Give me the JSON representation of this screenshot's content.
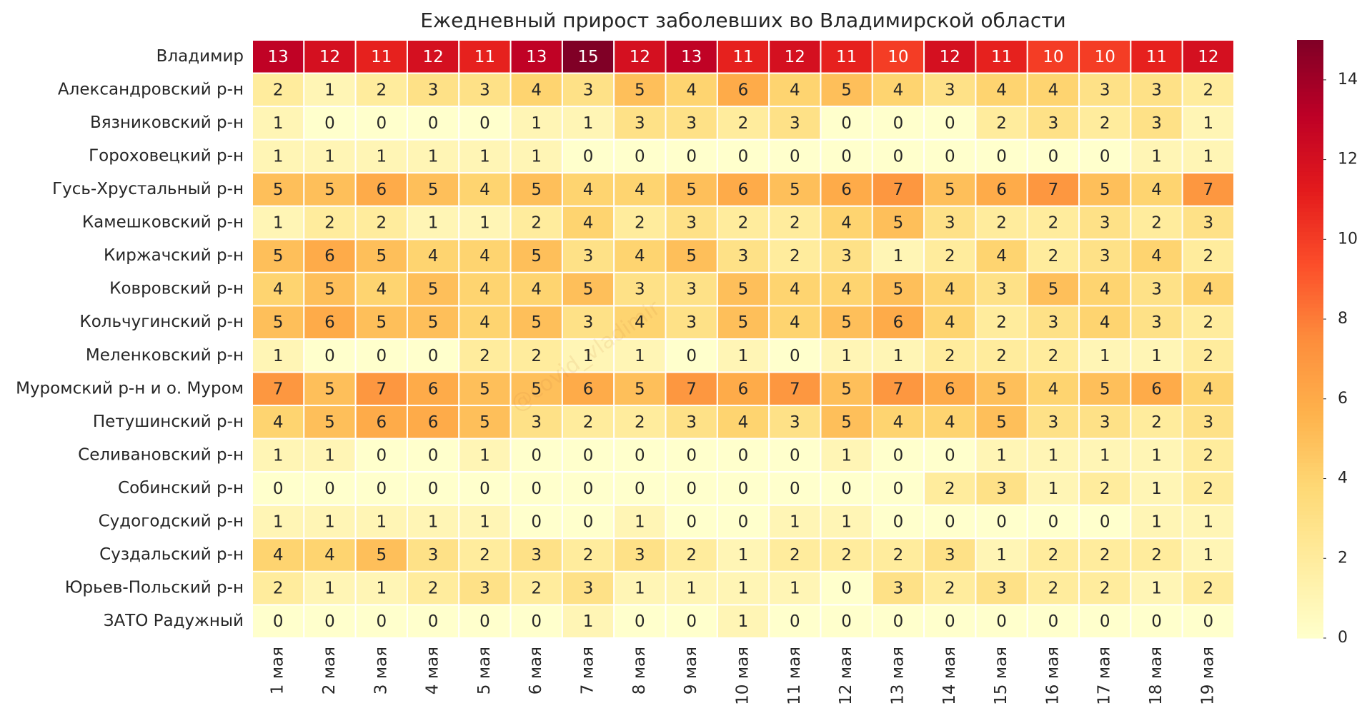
{
  "chart_data": {
    "type": "heatmap",
    "title": "Ежедневный прирост заболевших во Владимирской области",
    "watermark": "@covid_vladimir",
    "x": [
      "1 мая",
      "2 мая",
      "3 мая",
      "4 мая",
      "5 мая",
      "6 мая",
      "7 мая",
      "8 мая",
      "9 мая",
      "10 мая",
      "11 мая",
      "12 мая",
      "13 мая",
      "14 мая",
      "15 мая",
      "16 мая",
      "17 мая",
      "18 мая",
      "19 мая"
    ],
    "y": [
      "Владимир",
      "Александровский р-н",
      "Вязниковский р-н",
      "Гороховецкий р-н",
      "Гусь-Хрустальный р-н",
      "Камешковский р-н",
      "Киржачский р-н",
      "Ковровский р-н",
      "Кольчугинский р-н",
      "Меленковский р-н",
      "Муромский р-н и о. Муром",
      "Петушинский р-н",
      "Селивановский р-н",
      "Собинский р-н",
      "Судогодский р-н",
      "Суздальский р-н",
      "Юрьев-Польский р-н",
      "ЗАТО Радужный"
    ],
    "z": [
      [
        13,
        12,
        11,
        12,
        11,
        13,
        15,
        12,
        13,
        11,
        12,
        11,
        10,
        12,
        11,
        10,
        10,
        11,
        12
      ],
      [
        2,
        1,
        2,
        3,
        3,
        4,
        3,
        5,
        4,
        6,
        4,
        5,
        4,
        3,
        4,
        4,
        3,
        3,
        2
      ],
      [
        1,
        0,
        0,
        0,
        0,
        1,
        1,
        3,
        3,
        2,
        3,
        0,
        0,
        0,
        2,
        3,
        2,
        3,
        1
      ],
      [
        1,
        1,
        1,
        1,
        1,
        1,
        0,
        0,
        0,
        0,
        0,
        0,
        0,
        0,
        0,
        0,
        0,
        1,
        1
      ],
      [
        5,
        5,
        6,
        5,
        4,
        5,
        4,
        4,
        5,
        6,
        5,
        6,
        7,
        5,
        6,
        7,
        5,
        4,
        7
      ],
      [
        1,
        2,
        2,
        1,
        1,
        2,
        4,
        2,
        3,
        2,
        2,
        4,
        5,
        3,
        2,
        2,
        3,
        2,
        3
      ],
      [
        5,
        6,
        5,
        4,
        4,
        5,
        3,
        4,
        5,
        3,
        2,
        3,
        1,
        2,
        4,
        2,
        3,
        4,
        2
      ],
      [
        4,
        5,
        4,
        5,
        4,
        4,
        5,
        3,
        3,
        5,
        4,
        4,
        5,
        4,
        3,
        5,
        4,
        3,
        4
      ],
      [
        5,
        6,
        5,
        5,
        4,
        5,
        3,
        4,
        3,
        5,
        4,
        5,
        6,
        4,
        2,
        3,
        4,
        3,
        2
      ],
      [
        1,
        0,
        0,
        0,
        2,
        2,
        1,
        1,
        0,
        1,
        0,
        1,
        1,
        2,
        2,
        2,
        1,
        1,
        2
      ],
      [
        7,
        5,
        7,
        6,
        5,
        5,
        6,
        5,
        7,
        6,
        7,
        5,
        7,
        6,
        5,
        4,
        5,
        6,
        4
      ],
      [
        4,
        5,
        6,
        6,
        5,
        3,
        2,
        2,
        3,
        4,
        3,
        5,
        4,
        4,
        5,
        3,
        3,
        2,
        3
      ],
      [
        1,
        1,
        0,
        0,
        1,
        0,
        0,
        0,
        0,
        0,
        0,
        1,
        0,
        0,
        1,
        1,
        1,
        1,
        2
      ],
      [
        0,
        0,
        0,
        0,
        0,
        0,
        0,
        0,
        0,
        0,
        0,
        0,
        0,
        2,
        3,
        1,
        2,
        1,
        2
      ],
      [
        1,
        1,
        1,
        1,
        1,
        0,
        0,
        1,
        0,
        0,
        1,
        1,
        0,
        0,
        0,
        0,
        0,
        1,
        1
      ],
      [
        4,
        4,
        5,
        3,
        2,
        3,
        2,
        3,
        2,
        1,
        2,
        2,
        2,
        3,
        1,
        2,
        2,
        2,
        1
      ],
      [
        2,
        1,
        1,
        2,
        3,
        2,
        3,
        1,
        1,
        1,
        1,
        0,
        3,
        2,
        3,
        2,
        2,
        1,
        2
      ],
      [
        0,
        0,
        0,
        0,
        0,
        0,
        1,
        0,
        0,
        1,
        0,
        0,
        0,
        0,
        0,
        0,
        0,
        0,
        0
      ]
    ],
    "zlim": [
      0,
      15
    ],
    "colorbar_ticks": [
      0,
      2,
      4,
      6,
      8,
      10,
      12,
      14
    ],
    "colorscale": [
      "#ffffcc",
      "#ffeda0",
      "#fed976",
      "#feb24c",
      "#fd8d3c",
      "#fc4e2a",
      "#e31a1c",
      "#bd0026",
      "#800026"
    ]
  }
}
